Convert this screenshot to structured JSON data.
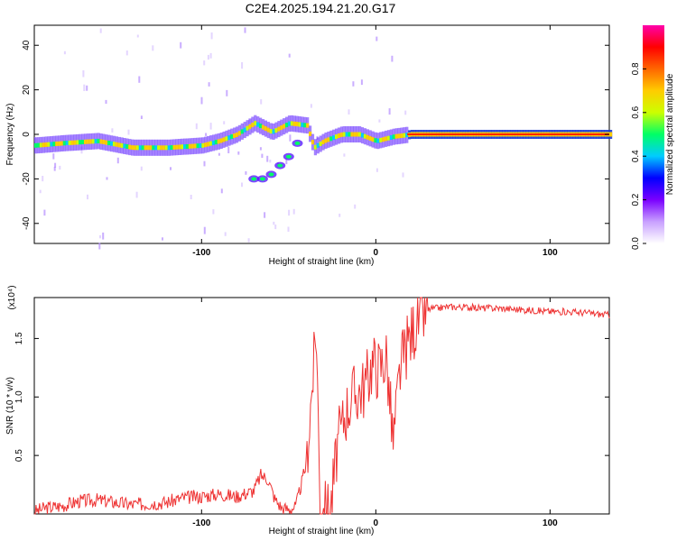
{
  "figure_title": "C2E4.2025.194.21.20.G17",
  "chart_data": [
    {
      "type": "heatmap",
      "title": "C2E4.2025.194.21.20.G17",
      "xlabel": "Height of straight line (km)",
      "ylabel": "Frequency (Hz)",
      "xlim": [
        -196,
        134
      ],
      "ylim": [
        -49,
        49
      ],
      "xticks": [
        -100,
        0,
        100
      ],
      "xtick_labels": [
        "-100",
        "0",
        "100"
      ],
      "yticks": [
        -40,
        -20,
        0,
        20,
        40
      ],
      "ytick_labels": [
        "-40",
        "-20",
        "0",
        "20",
        "40"
      ],
      "colorbar": {
        "label": "Normalized spectral amplitude",
        "range": [
          0,
          1
        ],
        "ticks": [
          0.0,
          0.2,
          0.4,
          0.6,
          0.8
        ],
        "tick_labels": [
          "0.0",
          "0.2",
          "0.4",
          "0.6",
          "0.8"
        ],
        "colormap": [
          "#ffffff",
          "#c8a0ff",
          "#7a00ff",
          "#0000ff",
          "#00ccff",
          "#00ff66",
          "#ccff00",
          "#ffcc00",
          "#ff6600",
          "#ff0000",
          "#ff00aa"
        ]
      },
      "main_trace": {
        "description_points_x": [
          -196,
          -180,
          -160,
          -140,
          -120,
          -100,
          -90,
          -80,
          -70,
          -60,
          -50,
          -40,
          -36,
          -30,
          -20,
          -10,
          0,
          10,
          20,
          40,
          60,
          80,
          100,
          120,
          134
        ],
        "description_points_y": [
          -5,
          -4,
          -3,
          -6,
          -6,
          -5,
          -3,
          0,
          5,
          1,
          5,
          4,
          -6,
          -3,
          0,
          0,
          -3,
          -1,
          0,
          0,
          0,
          0,
          0,
          0,
          0
        ]
      },
      "secondary_trace": {
        "x": [
          -70,
          -65,
          -60,
          -55,
          -50,
          -45
        ],
        "y": [
          -20,
          -20,
          -18,
          -14,
          -10,
          -4
        ]
      },
      "grid": false
    },
    {
      "type": "line",
      "xlabel": "Height of straight line (km)",
      "ylabel": "SNR (10 * v/v)",
      "y_multiplier": "(x10⁴)",
      "xlim": [
        -196,
        134
      ],
      "ylim": [
        0,
        1.85
      ],
      "xticks": [
        -100,
        0,
        100
      ],
      "xtick_labels": [
        "-100",
        "0",
        "100"
      ],
      "yticks": [
        0.5,
        1.0,
        1.5
      ],
      "ytick_labels": [
        "0.5",
        "1.0",
        "1.5"
      ],
      "color": "#ee3333",
      "x": [
        -196,
        -190,
        -180,
        -170,
        -160,
        -150,
        -140,
        -130,
        -120,
        -110,
        -100,
        -90,
        -80,
        -70,
        -66,
        -62,
        -58,
        -54,
        -50,
        -46,
        -40,
        -36,
        -34,
        -32,
        -30,
        -28,
        -26,
        -24,
        -22,
        -20,
        -18,
        -14,
        -10,
        -6,
        -2,
        2,
        6,
        10,
        14,
        18,
        22,
        26,
        30,
        36,
        40,
        50,
        60,
        70,
        80,
        90,
        100,
        110,
        120,
        134
      ],
      "y": [
        0.02,
        0.05,
        0.07,
        0.11,
        0.12,
        0.1,
        0.08,
        0.09,
        0.1,
        0.14,
        0.15,
        0.17,
        0.15,
        0.2,
        0.33,
        0.3,
        0.13,
        0.05,
        0.04,
        0.06,
        0.42,
        1.2,
        1.55,
        0.05,
        0.02,
        0.03,
        0.05,
        0.3,
        0.6,
        0.7,
        0.85,
        1.0,
        1.05,
        1.1,
        1.3,
        1.25,
        1.35,
        0.6,
        1.25,
        1.45,
        1.6,
        1.7,
        1.75,
        1.76,
        1.77,
        1.77,
        1.76,
        1.76,
        1.75,
        1.74,
        1.73,
        1.73,
        1.72,
        1.7
      ]
    }
  ]
}
